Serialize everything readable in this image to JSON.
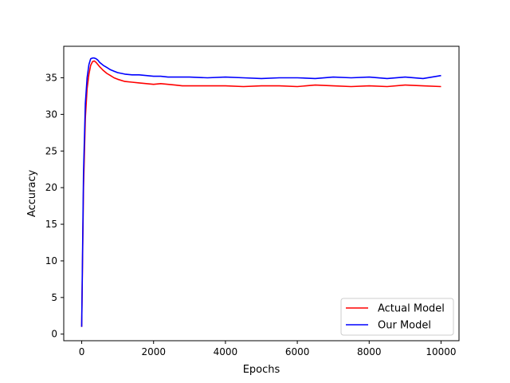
{
  "chart_data": {
    "type": "line",
    "title": "",
    "xlabel": "Epochs",
    "ylabel": "Accuracy",
    "xlim": [
      -500,
      10500
    ],
    "ylim": [
      -0.9,
      39.3
    ],
    "xticks": [
      0,
      2000,
      4000,
      6000,
      8000,
      10000
    ],
    "yticks": [
      0,
      5,
      10,
      15,
      20,
      25,
      30,
      35
    ],
    "grid": false,
    "legend_position": "lower right",
    "series": [
      {
        "name": "Actual Model",
        "color": "#ff0000",
        "x": [
          0,
          50,
          100,
          150,
          200,
          250,
          300,
          350,
          400,
          450,
          500,
          600,
          700,
          800,
          900,
          1000,
          1200,
          1400,
          1600,
          1800,
          2000,
          2200,
          2400,
          2600,
          2800,
          3000,
          3500,
          4000,
          4500,
          5000,
          5500,
          6000,
          6500,
          7000,
          7500,
          8000,
          8500,
          9000,
          9500,
          10000
        ],
        "y": [
          1.0,
          20.0,
          29.5,
          33.5,
          35.5,
          36.7,
          37.2,
          37.3,
          37.1,
          36.8,
          36.5,
          36.0,
          35.6,
          35.3,
          35.0,
          34.8,
          34.5,
          34.4,
          34.3,
          34.2,
          34.1,
          34.2,
          34.1,
          34.0,
          33.9,
          33.9,
          33.9,
          33.9,
          33.8,
          33.9,
          33.9,
          33.8,
          34.0,
          33.9,
          33.8,
          33.9,
          33.8,
          34.0,
          33.9,
          33.8
        ]
      },
      {
        "name": "Our Model",
        "color": "#0000ff",
        "x": [
          0,
          50,
          100,
          150,
          200,
          250,
          300,
          350,
          400,
          450,
          500,
          600,
          700,
          800,
          900,
          1000,
          1200,
          1400,
          1600,
          1800,
          2000,
          2200,
          2400,
          2600,
          2800,
          3000,
          3500,
          4000,
          4500,
          5000,
          5500,
          6000,
          6500,
          7000,
          7500,
          8000,
          8500,
          9000,
          9500,
          10000
        ],
        "y": [
          1.0,
          22.0,
          31.5,
          35.0,
          36.8,
          37.6,
          37.7,
          37.7,
          37.6,
          37.4,
          37.1,
          36.7,
          36.4,
          36.1,
          35.9,
          35.7,
          35.5,
          35.4,
          35.4,
          35.3,
          35.2,
          35.2,
          35.1,
          35.1,
          35.1,
          35.1,
          35.0,
          35.1,
          35.0,
          34.9,
          35.0,
          35.0,
          34.9,
          35.1,
          35.0,
          35.1,
          34.9,
          35.1,
          34.9,
          35.3
        ]
      }
    ]
  }
}
